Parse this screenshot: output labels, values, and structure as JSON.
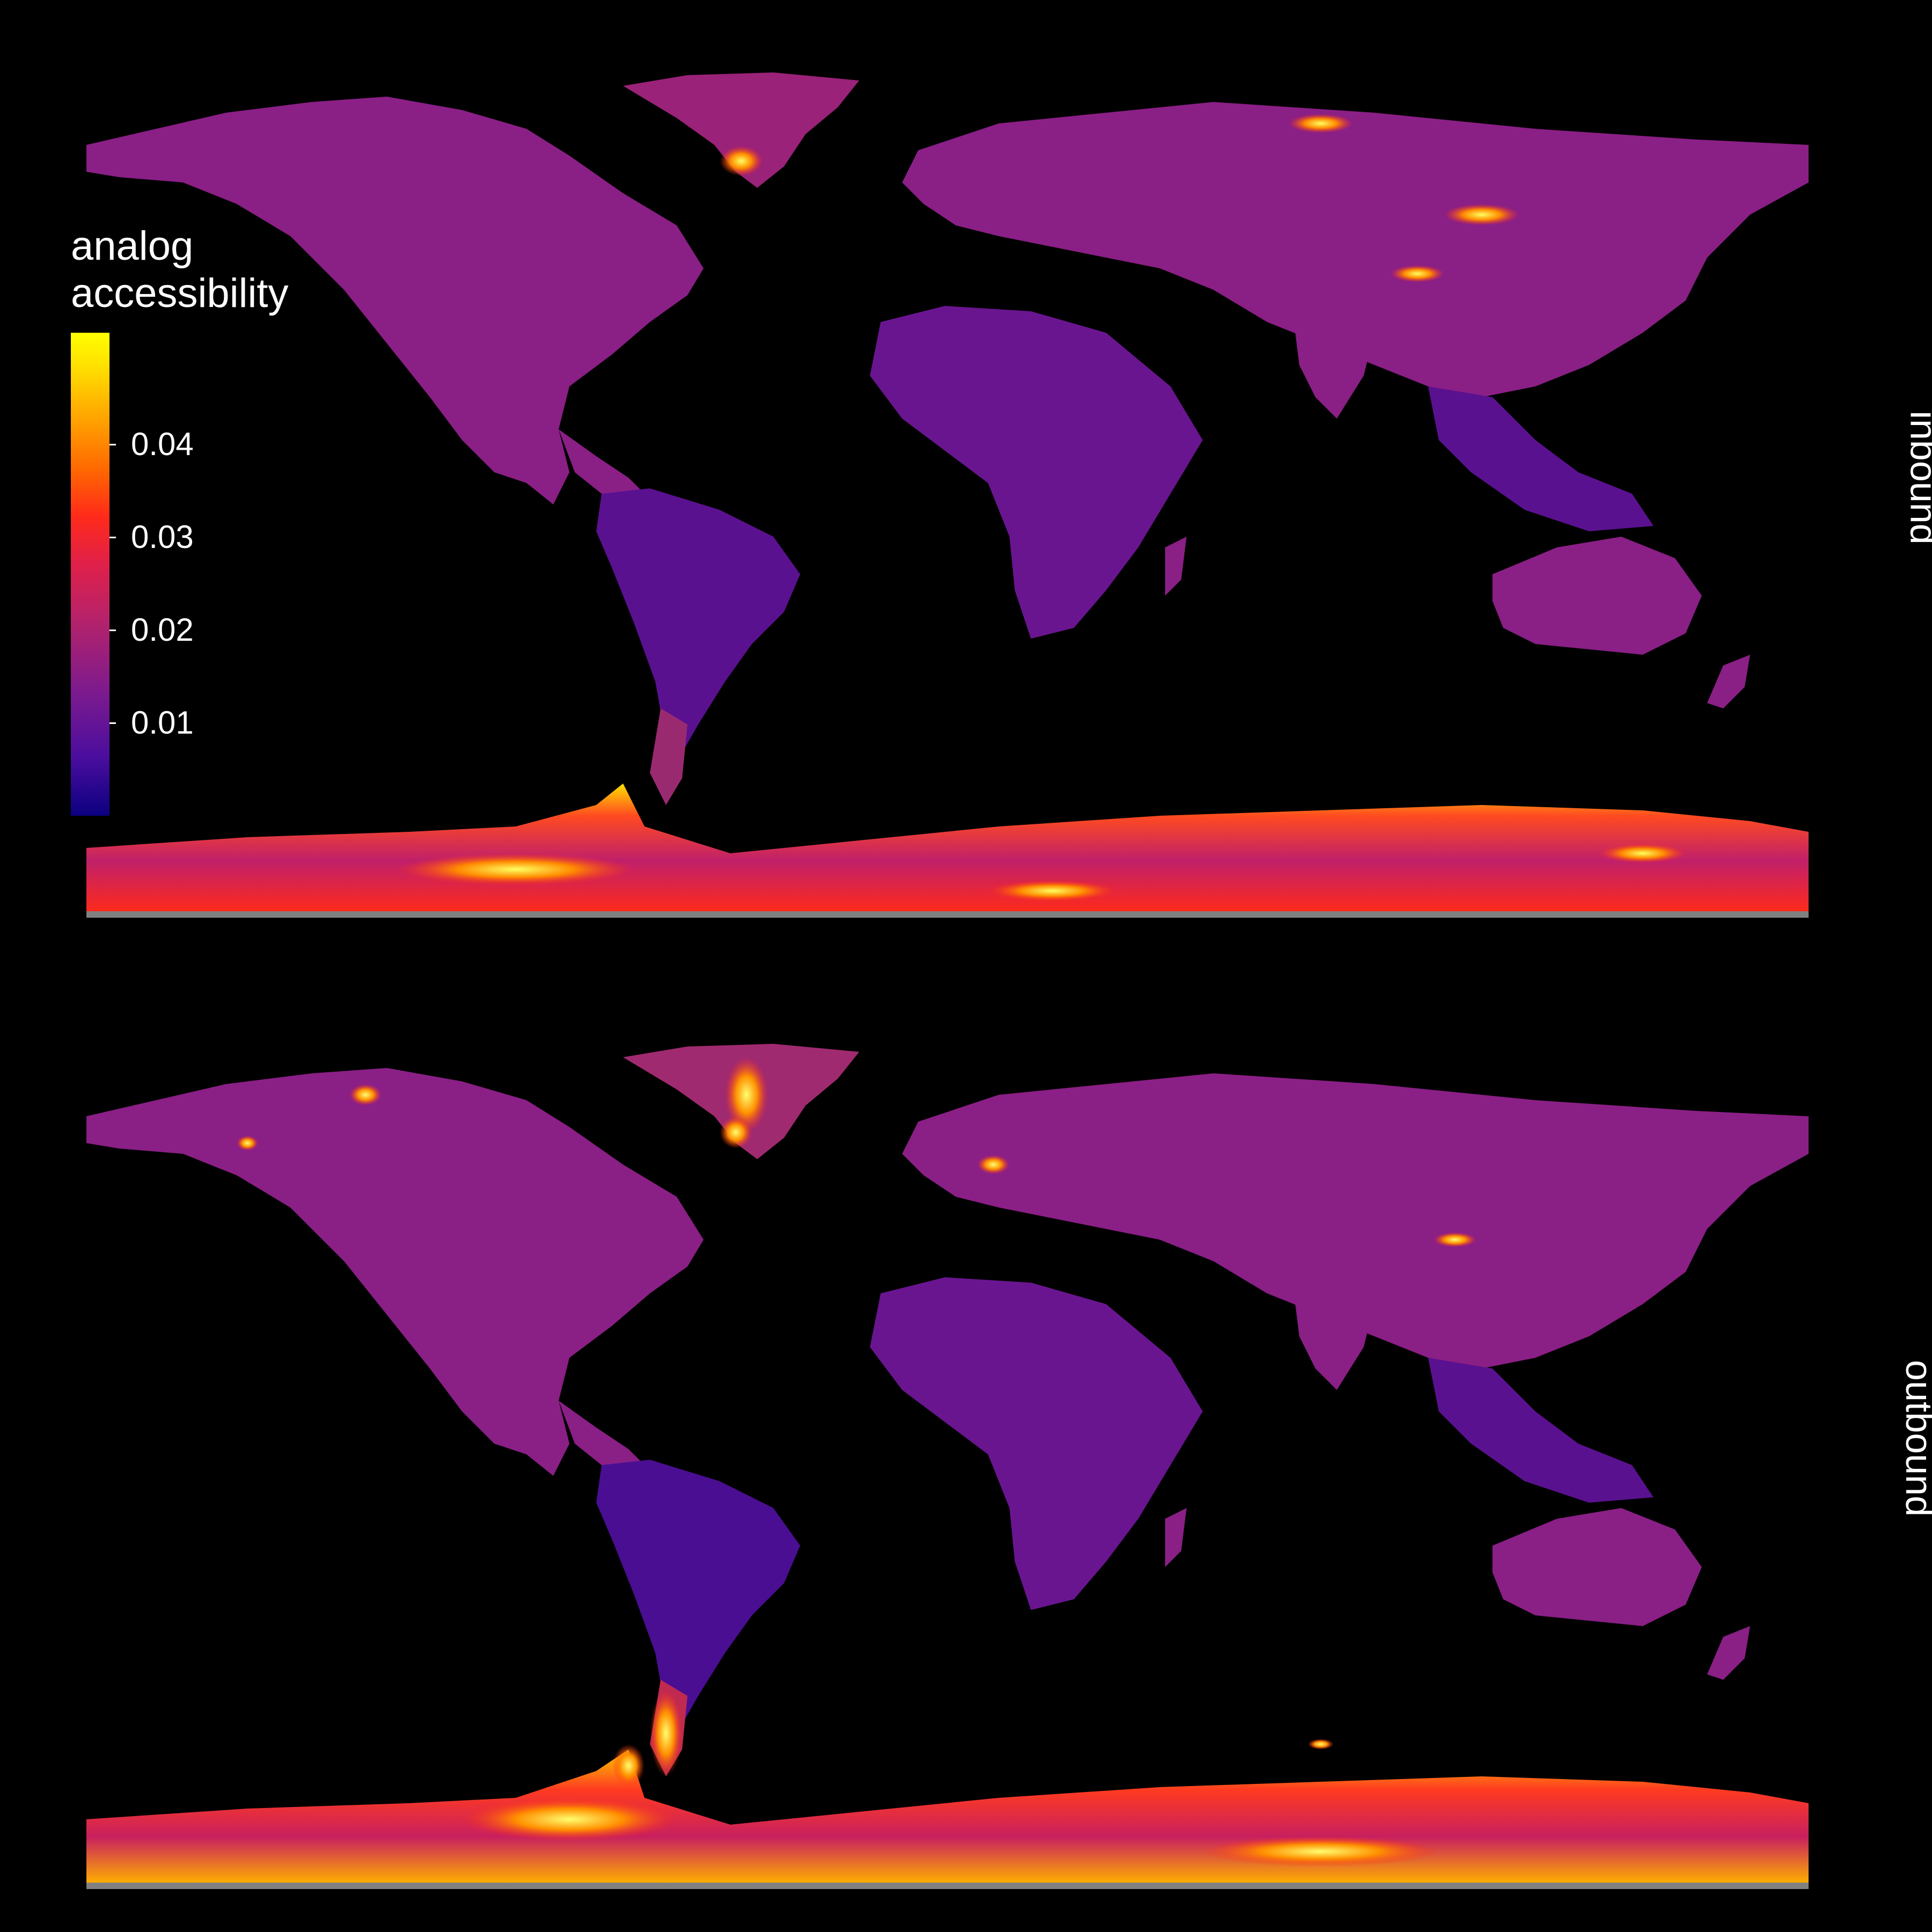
{
  "legend": {
    "title_line1": "analog",
    "title_line2": "accessibility",
    "ticks": [
      {
        "label": "0.04",
        "value": 0.04
      },
      {
        "label": "0.03",
        "value": 0.03
      },
      {
        "label": "0.02",
        "value": 0.02
      },
      {
        "label": "0.01",
        "value": 0.01
      }
    ],
    "scale_min": 0.0,
    "scale_max": 0.052,
    "colors": [
      "#0b0080",
      "#7a1a8f",
      "#e0204a",
      "#ff6a00",
      "#ffff00"
    ]
  },
  "panels": [
    {
      "label": "inbound"
    },
    {
      "label": "outbound"
    }
  ],
  "colors": {
    "background": "#000000",
    "land_base": "#8a1f86",
    "tropics": "#5a118f",
    "antarctica": "#ff3a2a",
    "hotspot": "#ffd400"
  }
}
